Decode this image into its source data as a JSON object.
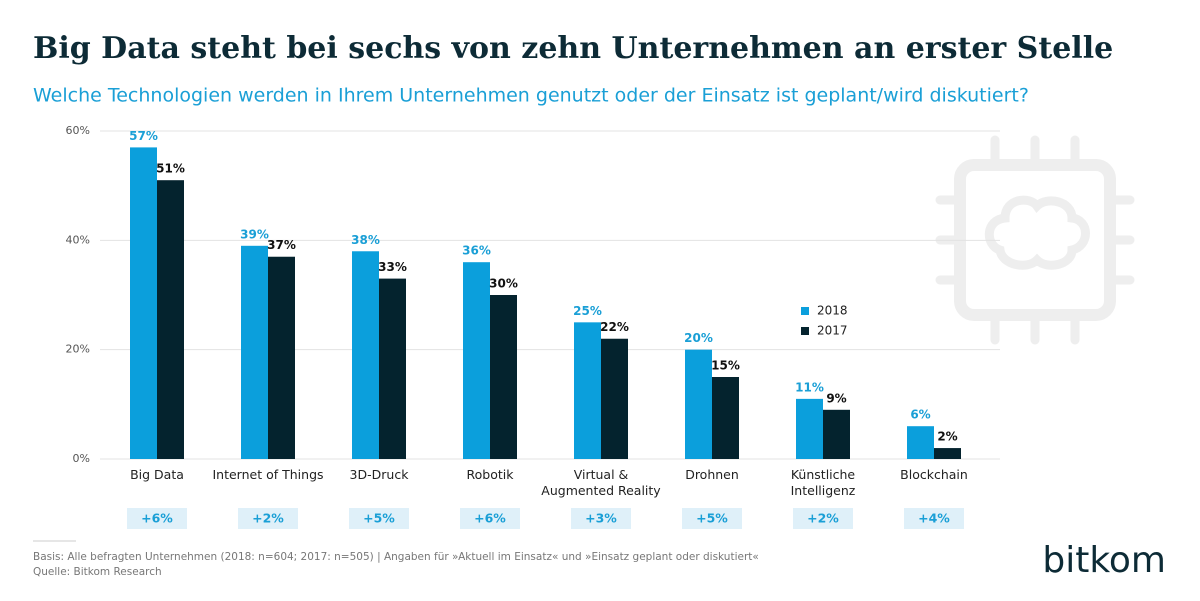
{
  "chart_data": {
    "type": "bar",
    "title": "Big Data steht bei sechs von zehn Unternehmen an erster Stelle",
    "subtitle": "Welche Technologien werden in Ihrem Unternehmen genutzt oder der Einsatz ist geplant/wird diskutiert?",
    "categories": [
      "Big Data",
      "Internet of Things",
      "3D-Druck",
      "Robotik",
      "Virtual &\nAugmented Reality",
      "Drohnen",
      "Künstliche\nIntelligenz",
      "Blockchain"
    ],
    "series": [
      {
        "name": "2018",
        "color": "#0b9fdc",
        "values": [
          57,
          39,
          38,
          36,
          25,
          20,
          11,
          6
        ],
        "value_labels": [
          "57%",
          "39%",
          "38%",
          "36%",
          "25%",
          "20%",
          "11%",
          "6%"
        ]
      },
      {
        "name": "2017",
        "color": "#04232e",
        "values": [
          51,
          37,
          33,
          30,
          22,
          15,
          9,
          2
        ],
        "value_labels": [
          "51%",
          "37%",
          "33%",
          "30%",
          "22%",
          "15%",
          "9%",
          "2%"
        ]
      }
    ],
    "annotations": [
      "+6%",
      "+2%",
      "+5%",
      "+6%",
      "+3%",
      "+5%",
      "+2%",
      "+4%"
    ],
    "ylim": [
      0,
      60
    ],
    "yticks": [
      {
        "value": 0,
        "label": "0%"
      },
      {
        "value": 20,
        "label": "20%"
      },
      {
        "value": 40,
        "label": "40%"
      },
      {
        "value": 60,
        "label": "60%"
      }
    ],
    "grid": true,
    "legend": "right",
    "footnote": "Basis: Alle befragten Unternehmen (2018: n=604; 2017: n=505) | Angaben für »Aktuell im Einsatz« und »Einsatz geplant oder diskutiert«",
    "source": "Quelle: Bitkom Research",
    "logo": "bitkom"
  }
}
